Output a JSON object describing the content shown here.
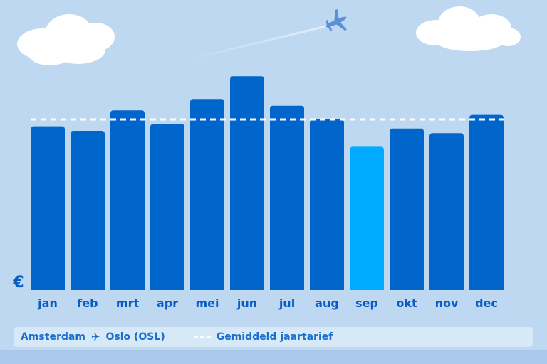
{
  "chart_data": {
    "type": "bar",
    "categories": [
      "jan",
      "feb",
      "mrt",
      "apr",
      "mei",
      "jun",
      "jul",
      "aug",
      "sep",
      "okt",
      "nov",
      "dec"
    ],
    "values": [
      72,
      70,
      79,
      73,
      84,
      94,
      81,
      75,
      63,
      71,
      69,
      77
    ],
    "highlighted_category": "sep",
    "average_line": 75,
    "ylim": [
      0,
      100
    ],
    "y_axis_symbol": "€",
    "colors": {
      "bar": "#0066cc",
      "bar_highlight": "#00aaff",
      "average_line": "#ffffff",
      "tick_label": "#0a5cc4",
      "sky": "#bdd8f0"
    }
  },
  "legend": {
    "origin": "Amsterdam",
    "route_icon": "airplane-icon",
    "destination": "Oslo (OSL)",
    "average_label": "Gemiddeld jaartarief"
  },
  "decorations": {
    "icons": [
      "cloud-icon",
      "cloud-icon",
      "airplane-icon"
    ]
  }
}
